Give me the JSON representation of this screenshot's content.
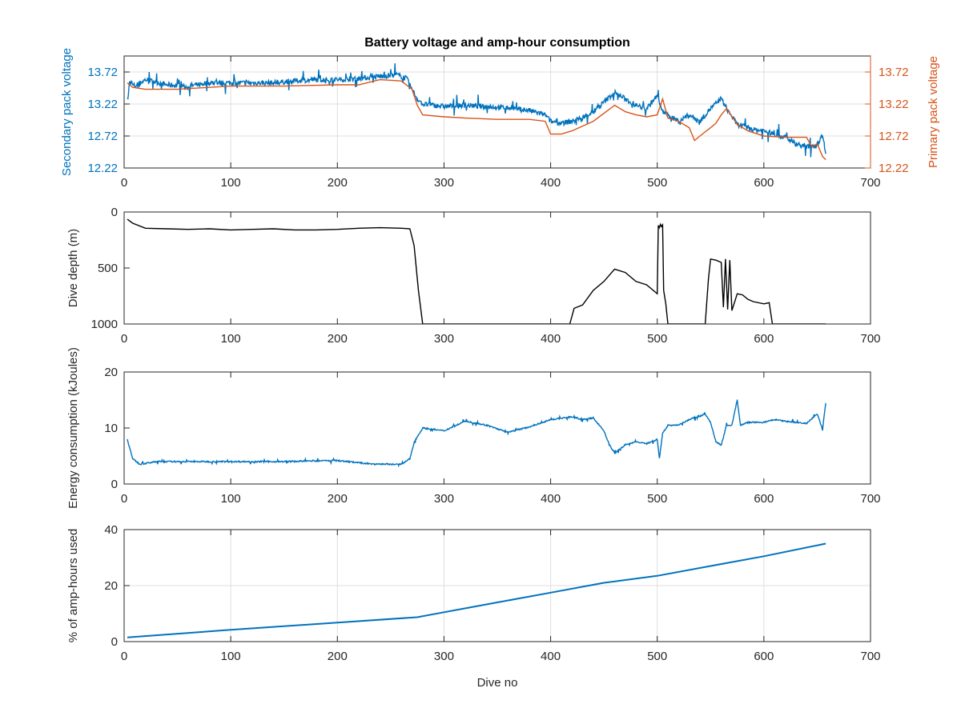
{
  "figure": {
    "title": "Battery voltage and amp-hour consumption",
    "xlabel": "Dive no",
    "colors": {
      "blue": "#0072BD",
      "orange": "#D95319",
      "black": "#000000",
      "grid": "#DFDFDF",
      "axis": "#262626"
    }
  },
  "chart_data": [
    {
      "type": "line",
      "title": "Battery voltage and amp-hour consumption",
      "xlabel": "",
      "ylabel": "Secondary pack voltage",
      "ylabel_right": "Primary pack voltage",
      "xlim": [
        0,
        700
      ],
      "ylim": [
        12.22,
        13.97
      ],
      "xticks": [
        0,
        100,
        200,
        300,
        400,
        500,
        600,
        700
      ],
      "yticks": [
        12.22,
        12.72,
        13.22,
        13.72
      ],
      "ytick_labels": [
        "12.22",
        "12.72",
        "13.22",
        "13.72"
      ],
      "grid": true,
      "series": [
        {
          "color": "#0072BD",
          "axis": "left",
          "noise": true,
          "x": [
            3,
            5,
            10,
            20,
            40,
            60,
            80,
            100,
            120,
            140,
            160,
            180,
            200,
            220,
            240,
            255,
            265,
            270,
            275,
            280,
            300,
            320,
            340,
            360,
            380,
            395,
            400,
            410,
            420,
            430,
            440,
            450,
            460,
            470,
            480,
            490,
            500,
            505,
            510,
            520,
            530,
            540,
            550,
            560,
            565,
            575,
            585,
            590,
            600,
            610,
            620,
            630,
            640,
            650,
            655,
            658
          ],
          "y": [
            13.2,
            13.55,
            13.5,
            13.6,
            13.52,
            13.5,
            13.55,
            13.55,
            13.55,
            13.55,
            13.58,
            13.6,
            13.6,
            13.62,
            13.65,
            13.68,
            13.62,
            13.45,
            13.3,
            13.22,
            13.18,
            13.2,
            13.18,
            13.16,
            13.12,
            13.05,
            12.95,
            12.92,
            12.95,
            13.0,
            13.1,
            13.25,
            13.4,
            13.3,
            13.2,
            13.15,
            13.35,
            13.1,
            13.05,
            12.95,
            13.05,
            12.95,
            13.15,
            13.3,
            13.15,
            12.9,
            12.85,
            12.82,
            12.8,
            12.75,
            12.7,
            12.6,
            12.55,
            12.58,
            12.75,
            12.45
          ]
        },
        {
          "color": "#D95319",
          "axis": "right",
          "noise": false,
          "x": [
            3,
            8,
            20,
            50,
            80,
            100,
            150,
            200,
            220,
            240,
            260,
            270,
            275,
            280,
            300,
            320,
            350,
            380,
            395,
            400,
            410,
            420,
            440,
            460,
            470,
            480,
            490,
            500,
            505,
            510,
            520,
            530,
            535,
            540,
            550,
            555,
            560,
            565,
            575,
            585,
            600,
            620,
            640,
            645,
            650,
            655,
            658
          ],
          "y": [
            13.55,
            13.48,
            13.45,
            13.45,
            13.48,
            13.5,
            13.5,
            13.52,
            13.52,
            13.6,
            13.58,
            13.45,
            13.2,
            13.05,
            13.02,
            13.0,
            12.98,
            12.98,
            12.95,
            12.75,
            12.75,
            12.8,
            12.95,
            13.2,
            13.1,
            13.05,
            13.02,
            13.05,
            13.3,
            13.0,
            12.95,
            12.85,
            12.65,
            12.72,
            12.85,
            12.92,
            13.05,
            13.15,
            12.9,
            12.8,
            12.72,
            12.7,
            12.7,
            12.55,
            12.6,
            12.4,
            12.35
          ]
        }
      ]
    },
    {
      "type": "line",
      "ylabel": "Dive depth (m)",
      "xlim": [
        0,
        700
      ],
      "ylim": [
        0,
        1000
      ],
      "y_reversed": true,
      "xticks": [
        0,
        100,
        200,
        300,
        400,
        500,
        600,
        700
      ],
      "yticks": [
        0,
        500,
        1000
      ],
      "ytick_labels": [
        "0",
        "500",
        "1000"
      ],
      "grid": false,
      "series": [
        {
          "color": "#000000",
          "x": [
            3,
            8,
            20,
            40,
            60,
            80,
            100,
            120,
            140,
            160,
            180,
            200,
            220,
            240,
            260,
            268,
            272,
            276,
            280,
            300,
            350,
            400,
            418,
            422,
            430,
            440,
            450,
            460,
            470,
            480,
            490,
            500,
            501,
            502,
            503,
            504,
            505,
            506,
            508,
            510,
            513,
            545,
            548,
            550,
            555,
            560,
            562,
            564,
            566,
            568,
            570,
            575,
            580,
            585,
            590,
            600,
            605,
            608,
            610,
            630,
            658
          ],
          "y": [
            65,
            100,
            145,
            150,
            155,
            150,
            160,
            155,
            150,
            160,
            160,
            155,
            145,
            140,
            145,
            150,
            300,
            700,
            1000,
            1000,
            1000,
            1000,
            1000,
            860,
            830,
            700,
            620,
            510,
            540,
            620,
            650,
            730,
            120,
            140,
            110,
            130,
            115,
            700,
            820,
            1000,
            1000,
            1000,
            600,
            420,
            430,
            450,
            850,
            420,
            870,
            430,
            880,
            730,
            740,
            780,
            800,
            820,
            810,
            1000,
            1000,
            1000,
            1000
          ]
        }
      ]
    },
    {
      "type": "line",
      "ylabel": "Energy consumption (kJoules)",
      "xlim": [
        0,
        700
      ],
      "ylim": [
        0,
        20
      ],
      "xticks": [
        0,
        100,
        200,
        300,
        400,
        500,
        600,
        700
      ],
      "yticks": [
        0,
        10,
        20
      ],
      "ytick_labels": [
        "0",
        "10",
        "20"
      ],
      "grid": false,
      "series": [
        {
          "color": "#0072BD",
          "noise": true,
          "x": [
            3,
            8,
            15,
            30,
            60,
            100,
            150,
            200,
            230,
            260,
            268,
            272,
            280,
            300,
            320,
            340,
            360,
            380,
            400,
            420,
            430,
            440,
            450,
            455,
            460,
            470,
            480,
            490,
            500,
            502,
            505,
            510,
            520,
            530,
            545,
            550,
            555,
            560,
            565,
            570,
            575,
            578,
            585,
            600,
            610,
            620,
            630,
            640,
            650,
            655,
            658
          ],
          "y": [
            8,
            4.5,
            3.5,
            4.0,
            4.0,
            4.0,
            4.0,
            4.2,
            3.6,
            3.5,
            4.5,
            7.5,
            10,
            9.5,
            11.2,
            10.5,
            9.2,
            10.2,
            11.5,
            12,
            11.5,
            11.8,
            9.5,
            7.0,
            5.5,
            7.0,
            7.5,
            7.2,
            8.0,
            4.5,
            9.0,
            10.5,
            10.5,
            11.5,
            12.5,
            11.0,
            7.5,
            7.0,
            10.5,
            10.5,
            15,
            10.5,
            11.0,
            11.0,
            11.5,
            11.2,
            11.0,
            10.8,
            12.5,
            9.8,
            14.5
          ]
        }
      ]
    },
    {
      "type": "line",
      "ylabel": "% of amp-hours used",
      "xlabel": "Dive no",
      "xlim": [
        0,
        700
      ],
      "ylim": [
        0,
        40
      ],
      "xticks": [
        0,
        100,
        200,
        300,
        400,
        500,
        600,
        700
      ],
      "yticks": [
        0,
        20,
        40
      ],
      "ytick_labels": [
        "0",
        "20",
        "40"
      ],
      "grid": true,
      "series": [
        {
          "color": "#0072BD",
          "x": [
            3,
            100,
            200,
            275,
            300,
            350,
            400,
            450,
            500,
            550,
            600,
            658
          ],
          "y": [
            1.5,
            4.2,
            6.8,
            8.7,
            10.5,
            14.0,
            17.5,
            21.0,
            23.5,
            27.0,
            30.5,
            35.0
          ]
        }
      ]
    }
  ]
}
